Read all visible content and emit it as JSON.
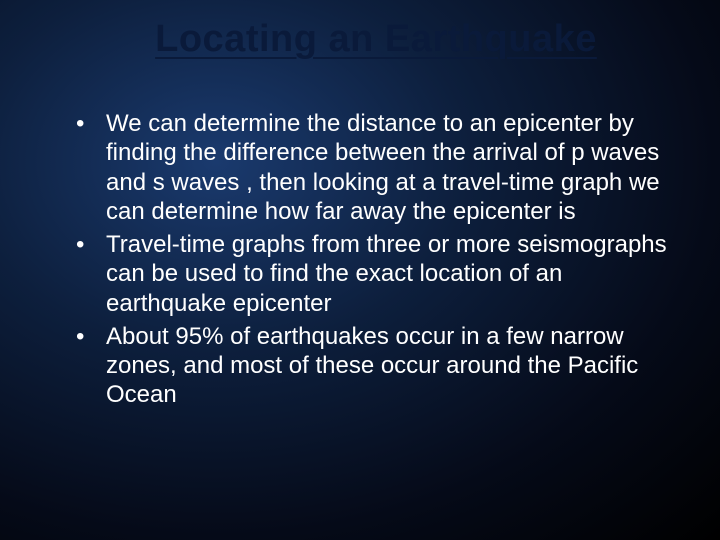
{
  "slide": {
    "title": "Locating an Earthquake",
    "title_fontsize": 38,
    "title_color": "#0a1a3a",
    "bullets": [
      "We can determine the distance to an epicenter by finding the difference between the arrival of p waves and s waves , then looking at a travel-time graph we can determine how far away the epicenter is",
      "Travel-time graphs from three or more seismographs can be used to find the exact location of an earthquake epicenter",
      "About 95% of earthquakes occur in a few narrow zones, and most of these occur around the Pacific Ocean"
    ],
    "body_fontsize": 24,
    "body_color": "#ffffff",
    "body_line_height": 1.22,
    "background_colors": {
      "center": "#1a3a6e",
      "mid": "#0d1f3d",
      "edge": "#000000"
    }
  }
}
